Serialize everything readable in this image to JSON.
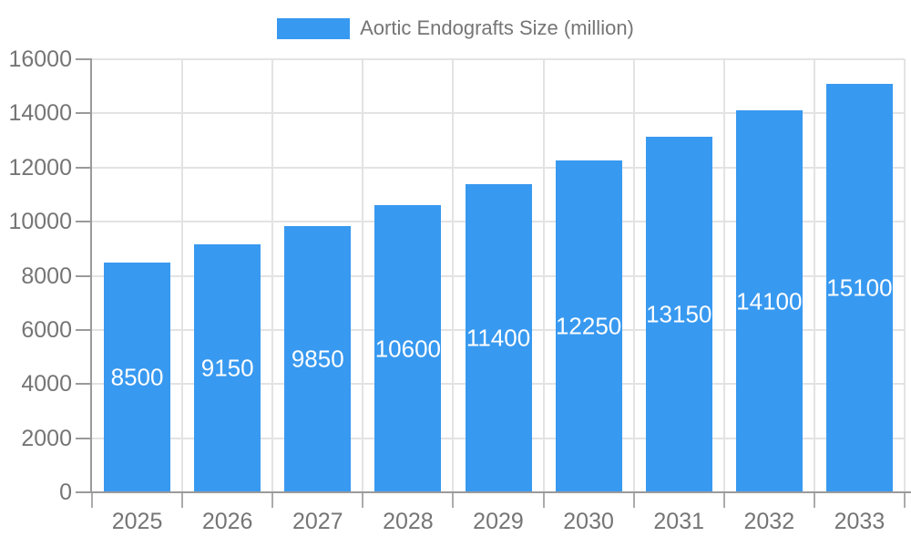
{
  "legend": {
    "label": "Aortic Endografts Size (million)"
  },
  "colors": {
    "bar": "#3899F0",
    "grid_line": "#E3E3E3",
    "axis_line": "#9A9A9A",
    "boundary_tick": "#ABABAB",
    "tick_text": "#757575",
    "value_label_text": "#FFFFFF",
    "background": "#FFFFFF"
  },
  "chart_data": {
    "type": "bar",
    "title": "",
    "categories": [
      "2025",
      "2026",
      "2027",
      "2028",
      "2029",
      "2030",
      "2031",
      "2032",
      "2033"
    ],
    "series": [
      {
        "name": "Aortic Endografts Size (million)",
        "values": [
          8500,
          9150,
          9850,
          10600,
          11400,
          12250,
          13150,
          14100,
          15100
        ]
      }
    ],
    "xlabel": "",
    "ylabel": "",
    "ylim": [
      0,
      16000
    ],
    "yticks": [
      0,
      2000,
      4000,
      6000,
      8000,
      10000,
      12000,
      14000,
      16000
    ],
    "grid": true,
    "legend_position": "top-center",
    "value_labels_position": "inside-middle"
  }
}
